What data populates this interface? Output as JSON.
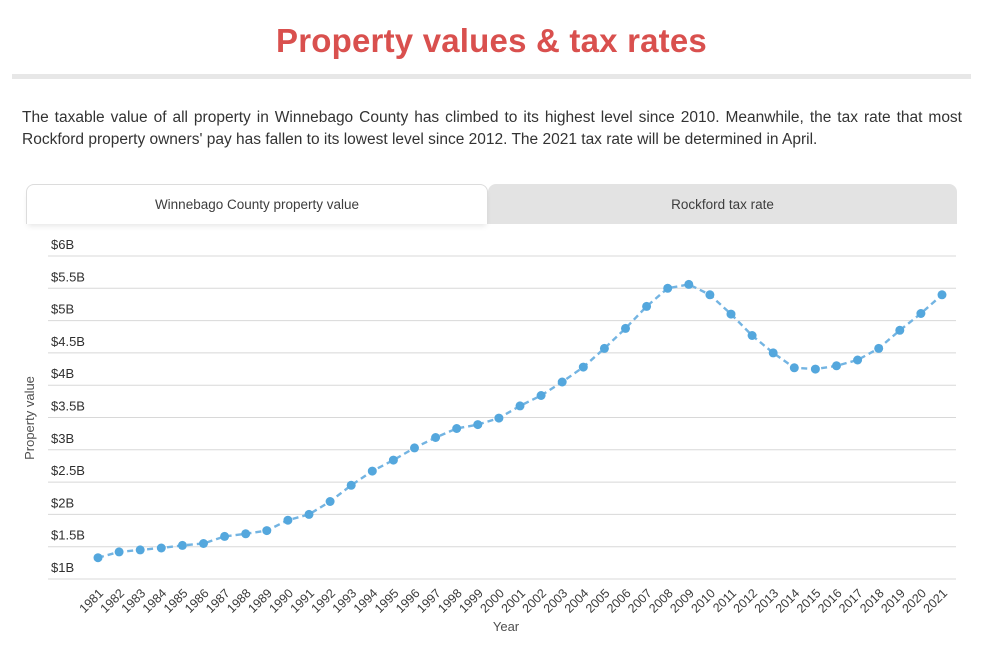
{
  "page": {
    "title": "Property values & tax rates",
    "title_color": "#d9504e"
  },
  "intro": {
    "text": "The taxable value of all property in Winnebago County has climbed to its highest level since 2010. Meanwhile, the tax rate that most Rockford property owners' pay has fallen to its lowest level since 2012. The 2021 tax rate will be determined in April."
  },
  "tabs": [
    {
      "label": "Winnebago County property value",
      "active": true
    },
    {
      "label": "Rockford tax rate",
      "active": false
    }
  ],
  "chart_data": {
    "type": "line",
    "title": "Winnebago County property value",
    "xlabel": "Year",
    "ylabel": "Property value",
    "line_style": "dashed",
    "grid": true,
    "line_color": "#73b4e2",
    "marker_color": "#54a7dd",
    "gridline_color": "#d8d8d8",
    "ylim": [
      1,
      6
    ],
    "yticks": [
      {
        "label": "$1B",
        "value": 1.0
      },
      {
        "label": "$1.5B",
        "value": 1.5
      },
      {
        "label": "$2B",
        "value": 2.0
      },
      {
        "label": "$2.5B",
        "value": 2.5
      },
      {
        "label": "$3B",
        "value": 3.0
      },
      {
        "label": "$3.5B",
        "value": 3.5
      },
      {
        "label": "$4B",
        "value": 4.0
      },
      {
        "label": "$4.5B",
        "value": 4.5
      },
      {
        "label": "$5B",
        "value": 5.0
      },
      {
        "label": "$5.5B",
        "value": 5.5
      },
      {
        "label": "$6B",
        "value": 6.0
      }
    ],
    "x": [
      1981,
      1982,
      1983,
      1984,
      1985,
      1986,
      1987,
      1988,
      1989,
      1990,
      1991,
      1992,
      1993,
      1994,
      1995,
      1996,
      1997,
      1998,
      1999,
      2000,
      2001,
      2002,
      2003,
      2004,
      2005,
      2006,
      2007,
      2008,
      2009,
      2010,
      2011,
      2012,
      2013,
      2014,
      2015,
      2016,
      2017,
      2018,
      2019,
      2020,
      2021
    ],
    "series": [
      {
        "name": "Winnebago County property value ($B)",
        "values": [
          1.33,
          1.42,
          1.45,
          1.48,
          1.52,
          1.55,
          1.66,
          1.7,
          1.75,
          1.91,
          2.0,
          2.2,
          2.45,
          2.67,
          2.84,
          3.03,
          3.19,
          3.33,
          3.39,
          3.49,
          3.68,
          3.84,
          4.05,
          4.28,
          4.57,
          4.88,
          5.22,
          5.5,
          5.56,
          5.4,
          5.1,
          4.77,
          4.5,
          4.27,
          4.25,
          4.3,
          4.39,
          4.57,
          4.85,
          5.11,
          5.4
        ]
      }
    ]
  }
}
